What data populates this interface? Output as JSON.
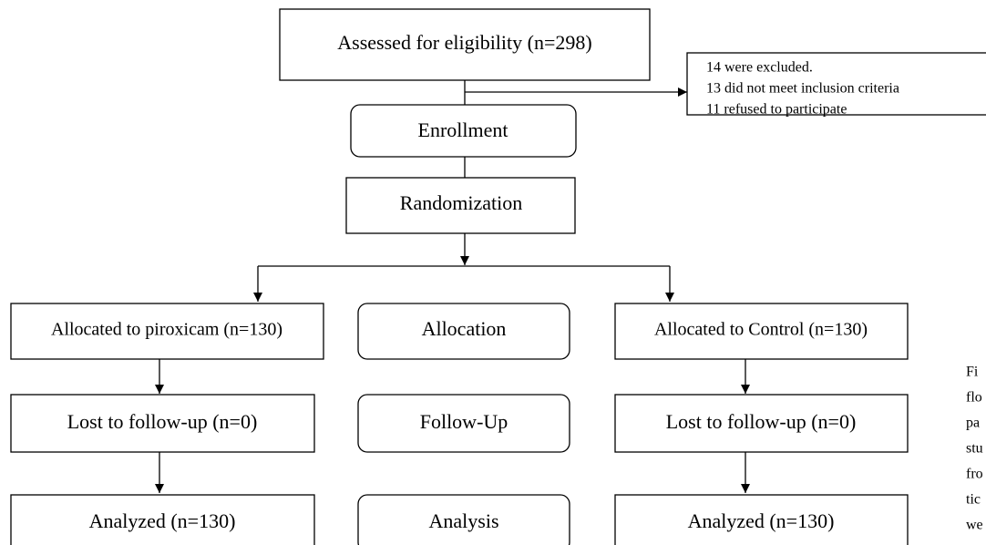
{
  "nodes": [
    {
      "label": "Assessed for eligibility (n=298)"
    },
    {
      "label": "Enrollment"
    },
    {
      "label": "Randomization"
    },
    {
      "label": "Allocated to piroxicam (n=130)"
    },
    {
      "label": "Allocation"
    },
    {
      "label": "Allocated to Control (n=130)"
    },
    {
      "label": "Lost to follow-up (n=0)"
    },
    {
      "label": "Follow-Up"
    },
    {
      "label": "Lost to follow-up (n=0)"
    },
    {
      "label": "Analyzed (n=130)"
    },
    {
      "label": "Analysis"
    },
    {
      "label": "Analyzed (n=130)"
    }
  ],
  "exclusion": {
    "lines": [
      "14 were excluded.",
      "13 did not meet inclusion criteria",
      "11 refused to participate"
    ]
  },
  "caption": {
    "fragments": [
      "Fi",
      "flo",
      "pa",
      "stu",
      "fro",
      "tic",
      "we"
    ]
  }
}
